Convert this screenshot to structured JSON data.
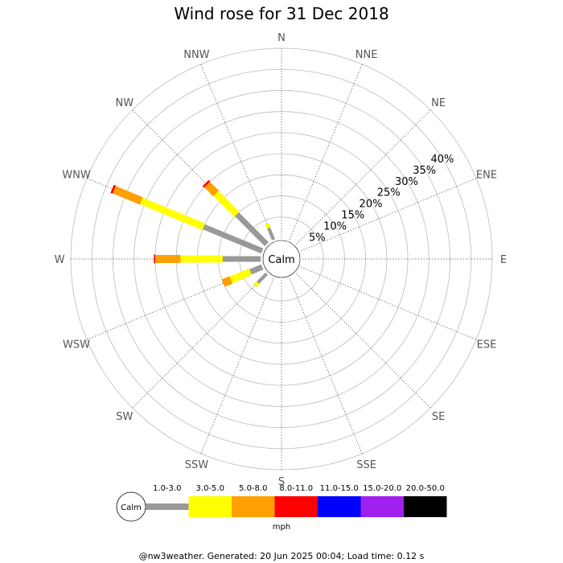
{
  "chart_data": {
    "type": "wind-rose",
    "title": "Wind rose for 31 Dec 2018",
    "directions": [
      "N",
      "NNE",
      "NE",
      "ENE",
      "E",
      "ESE",
      "SE",
      "SSE",
      "S",
      "SSW",
      "SW",
      "WSW",
      "W",
      "WNW",
      "NW",
      "NNW"
    ],
    "radial_ticks": [
      "5%",
      "10%",
      "15%",
      "20%",
      "25%",
      "30%",
      "35%",
      "40%"
    ],
    "radial_max_percent": 45,
    "grid": true,
    "calm_label": "Calm",
    "speed_unit": "mph",
    "speed_bins": [
      {
        "label": "1.0-3.0",
        "color": "#999999"
      },
      {
        "label": "3.0-5.0",
        "color": "#ffff00"
      },
      {
        "label": "5.0-8.0",
        "color": "#ff9f00"
      },
      {
        "label": "8.0-11.0",
        "color": "#ff0000"
      },
      {
        "label": "11.0-15.0",
        "color": "#0000ff"
      },
      {
        "label": "15.0-20.0",
        "color": "#a020f0"
      },
      {
        "label": "20.0-50.0",
        "color": "#000000"
      }
    ],
    "series": [
      {
        "direction": "NNW",
        "cumulative_percent": [
          3,
          4,
          0,
          0,
          0,
          0,
          0
        ]
      },
      {
        "direction": "NW",
        "cumulative_percent": [
          10,
          17,
          20,
          20.5,
          20.5,
          20.5,
          20.5
        ]
      },
      {
        "direction": "WNW",
        "cumulative_percent": [
          15,
          31,
          38,
          38.5,
          38.5,
          38.5,
          38.5
        ]
      },
      {
        "direction": "W",
        "cumulative_percent": [
          9,
          19,
          25,
          25.3,
          25.3,
          25.3,
          25.3
        ]
      },
      {
        "direction": "WSW",
        "cumulative_percent": [
          3,
          8,
          10,
          10,
          10,
          10,
          10
        ]
      },
      {
        "direction": "SW",
        "cumulative_percent": [
          3,
          4,
          4,
          4,
          4,
          4,
          4
        ]
      }
    ]
  },
  "footer": "@nw3weather. Generated: 20 Jun 2025 00:04; Load time: 0.12 s"
}
